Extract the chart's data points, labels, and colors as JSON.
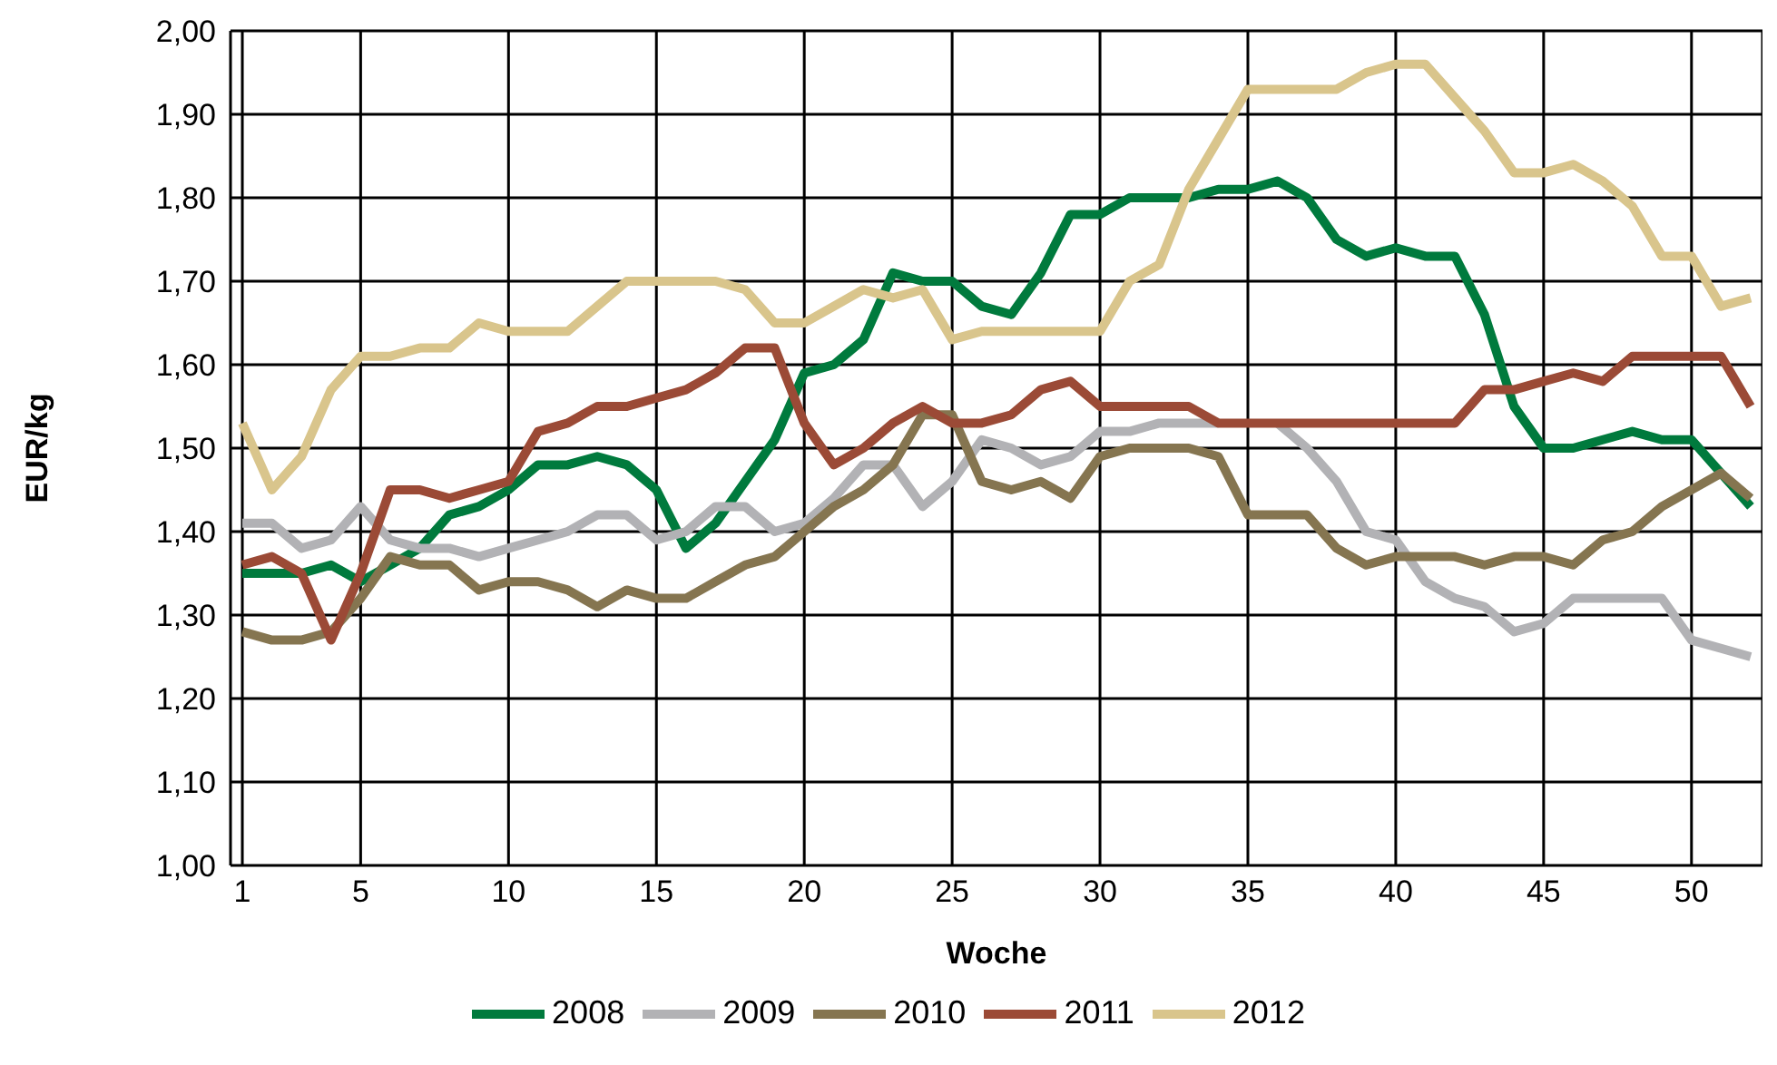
{
  "chart_data": {
    "type": "line",
    "xlabel": "Woche",
    "ylabel": "EUR/kg",
    "x": [
      1,
      2,
      3,
      4,
      5,
      6,
      7,
      8,
      9,
      10,
      11,
      12,
      13,
      14,
      15,
      16,
      17,
      18,
      19,
      20,
      21,
      22,
      23,
      24,
      25,
      26,
      27,
      28,
      29,
      30,
      31,
      32,
      33,
      34,
      35,
      36,
      37,
      38,
      39,
      40,
      41,
      42,
      43,
      44,
      45,
      46,
      47,
      48,
      49,
      50,
      51,
      52
    ],
    "xlim": [
      0.6,
      52.4
    ],
    "xticks": [
      1,
      5,
      10,
      15,
      20,
      25,
      30,
      35,
      40,
      45,
      50
    ],
    "ylim": [
      1,
      2
    ],
    "yticks": [
      {
        "value": 1,
        "label": "1,00"
      },
      {
        "value": 1.1,
        "label": "1,10"
      },
      {
        "value": 1.2,
        "label": "1,20"
      },
      {
        "value": 1.3,
        "label": "1,30"
      },
      {
        "value": 1.4,
        "label": "1,40"
      },
      {
        "value": 1.5,
        "label": "1,50"
      },
      {
        "value": 1.6,
        "label": "1,60"
      },
      {
        "value": 1.7,
        "label": "1,70"
      },
      {
        "value": 1.8,
        "label": "1,80"
      },
      {
        "value": 1.9,
        "label": "1,90"
      },
      {
        "value": 2,
        "label": "2,00"
      }
    ],
    "grid": true,
    "legend": "bottom",
    "marker": "none",
    "line_style": "solid",
    "series": [
      {
        "name": "2008",
        "color": "#007a3d",
        "values": [
          1.35,
          1.35,
          1.35,
          1.36,
          1.34,
          1.36,
          1.38,
          1.42,
          1.43,
          1.45,
          1.48,
          1.48,
          1.49,
          1.48,
          1.45,
          1.38,
          1.41,
          1.46,
          1.51,
          1.59,
          1.6,
          1.63,
          1.71,
          1.7,
          1.7,
          1.67,
          1.66,
          1.71,
          1.78,
          1.78,
          1.8,
          1.8,
          1.8,
          1.81,
          1.81,
          1.82,
          1.8,
          1.75,
          1.73,
          1.74,
          1.73,
          1.73,
          1.66,
          1.55,
          1.5,
          1.5,
          1.51,
          1.52,
          1.51,
          1.51,
          1.47,
          1.43
        ]
      },
      {
        "name": "2009",
        "color": "#b2b2b5",
        "values": [
          1.41,
          1.41,
          1.38,
          1.39,
          1.43,
          1.39,
          1.38,
          1.38,
          1.37,
          1.38,
          1.39,
          1.4,
          1.42,
          1.42,
          1.39,
          1.4,
          1.43,
          1.43,
          1.4,
          1.41,
          1.44,
          1.48,
          1.48,
          1.43,
          1.46,
          1.51,
          1.5,
          1.48,
          1.49,
          1.52,
          1.52,
          1.53,
          1.53,
          1.53,
          null,
          1.53,
          1.5,
          1.46,
          1.4,
          1.39,
          1.34,
          1.32,
          1.31,
          1.28,
          1.29,
          1.32,
          1.32,
          1.32,
          1.32,
          1.27,
          1.26,
          1.25
        ]
      },
      {
        "name": "2010",
        "color": "#857550",
        "values": [
          1.28,
          1.27,
          1.27,
          1.28,
          1.32,
          1.37,
          1.36,
          1.36,
          1.33,
          1.34,
          1.34,
          1.33,
          1.31,
          1.33,
          1.32,
          1.32,
          1.34,
          1.36,
          1.37,
          1.4,
          1.43,
          1.45,
          1.48,
          1.54,
          1.54,
          1.46,
          1.45,
          1.46,
          1.44,
          1.49,
          1.5,
          1.5,
          1.5,
          1.49,
          1.42,
          1.42,
          1.42,
          1.38,
          1.36,
          1.37,
          1.37,
          1.37,
          1.36,
          1.37,
          1.37,
          1.36,
          1.39,
          1.4,
          1.43,
          1.45,
          1.47,
          1.44
        ]
      },
      {
        "name": "2011",
        "color": "#9b4a36",
        "values": [
          1.36,
          1.37,
          1.35,
          1.27,
          1.35,
          1.45,
          1.45,
          1.44,
          1.45,
          1.46,
          1.52,
          1.53,
          1.55,
          1.55,
          1.56,
          1.57,
          1.59,
          1.62,
          1.62,
          1.53,
          1.48,
          1.5,
          1.53,
          1.55,
          1.53,
          1.53,
          1.54,
          1.57,
          1.58,
          1.55,
          1.55,
          1.55,
          1.55,
          1.53,
          1.53,
          1.53,
          1.53,
          1.53,
          1.53,
          1.53,
          1.53,
          1.53,
          1.57,
          1.57,
          1.58,
          1.59,
          1.58,
          1.61,
          1.61,
          1.61,
          1.61,
          1.55
        ]
      },
      {
        "name": "2012",
        "color": "#d9c58c",
        "values": [
          1.53,
          1.45,
          1.49,
          1.57,
          1.61,
          1.61,
          1.62,
          1.62,
          1.65,
          1.64,
          1.64,
          1.64,
          1.67,
          1.7,
          1.7,
          1.7,
          1.7,
          1.69,
          1.65,
          1.65,
          1.67,
          1.69,
          1.68,
          1.69,
          1.63,
          1.64,
          1.64,
          1.64,
          1.64,
          1.64,
          1.7,
          1.72,
          1.81,
          1.87,
          1.93,
          1.93,
          1.93,
          1.93,
          1.95,
          1.96,
          1.96,
          1.92,
          1.88,
          1.83,
          1.83,
          1.84,
          1.82,
          1.79,
          1.73,
          1.73,
          1.67,
          1.68
        ]
      }
    ]
  }
}
